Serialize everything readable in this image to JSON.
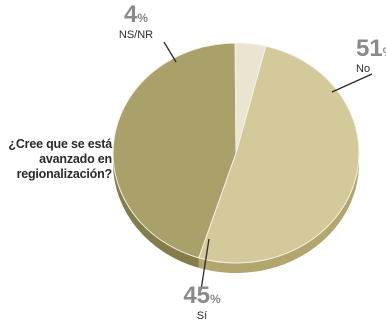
{
  "chart_data": {
    "type": "pie",
    "style": "3d",
    "question": "¿Cree que se está avanzado en regionalización?",
    "question_lines": [
      "¿Cree que se está",
      "avanzado en",
      "regionalización?"
    ],
    "slices": [
      {
        "label": "No",
        "value": 51,
        "unit": "%",
        "color": "#d3c99b",
        "side_color": "#b3a56e"
      },
      {
        "label": "Sí",
        "value": 45,
        "unit": "%",
        "color": "#a9a06a",
        "side_color": "#857c4b"
      },
      {
        "label": "NS/NR",
        "value": 4,
        "unit": "%",
        "color": "#e9e5d1",
        "side_color": "#cfc9ac"
      }
    ]
  }
}
